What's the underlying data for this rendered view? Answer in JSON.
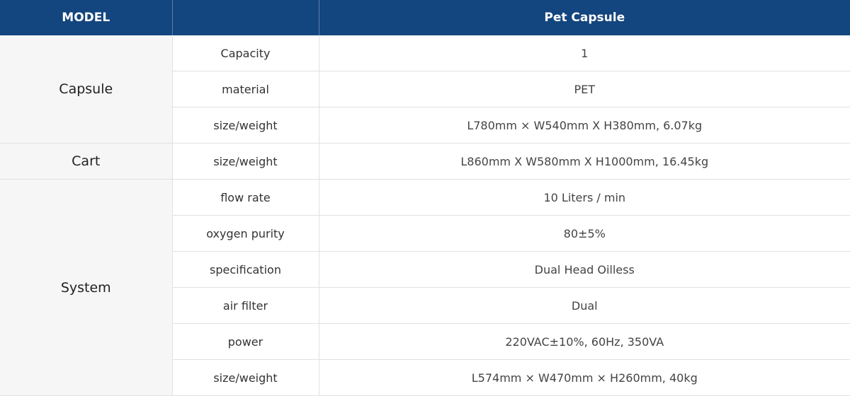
{
  "header": {
    "model_label": "MODEL",
    "empty_label": "",
    "product_name": "Pet Capsule"
  },
  "groups": [
    {
      "name": "Capsule",
      "rows": [
        {
          "label": "Capacity",
          "value": "1"
        },
        {
          "label": "material",
          "value": "PET"
        },
        {
          "label": "size/weight",
          "value": "L780mm × W540mm X H380mm, 6.07kg"
        }
      ]
    },
    {
      "name": "Cart",
      "rows": [
        {
          "label": "size/weight",
          "value": "L860mm X W580mm X H1000mm, 16.45kg"
        }
      ]
    },
    {
      "name": "System",
      "rows": [
        {
          "label": "flow rate",
          "value": "10 Liters / min"
        },
        {
          "label": "oxygen purity",
          "value": "80±5%"
        },
        {
          "label": "specification",
          "value": "Dual Head Oilless"
        },
        {
          "label": "air filter",
          "value": "Dual"
        },
        {
          "label": "power",
          "value": "220VAC±10%, 60Hz, 350VA"
        },
        {
          "label": "size/weight",
          "value": "L574mm × W470mm × H260mm, 40kg"
        }
      ]
    }
  ],
  "colors": {
    "header_bg": "#13457e",
    "group_bg": "#f6f6f6",
    "border": "#e1e1e1"
  }
}
